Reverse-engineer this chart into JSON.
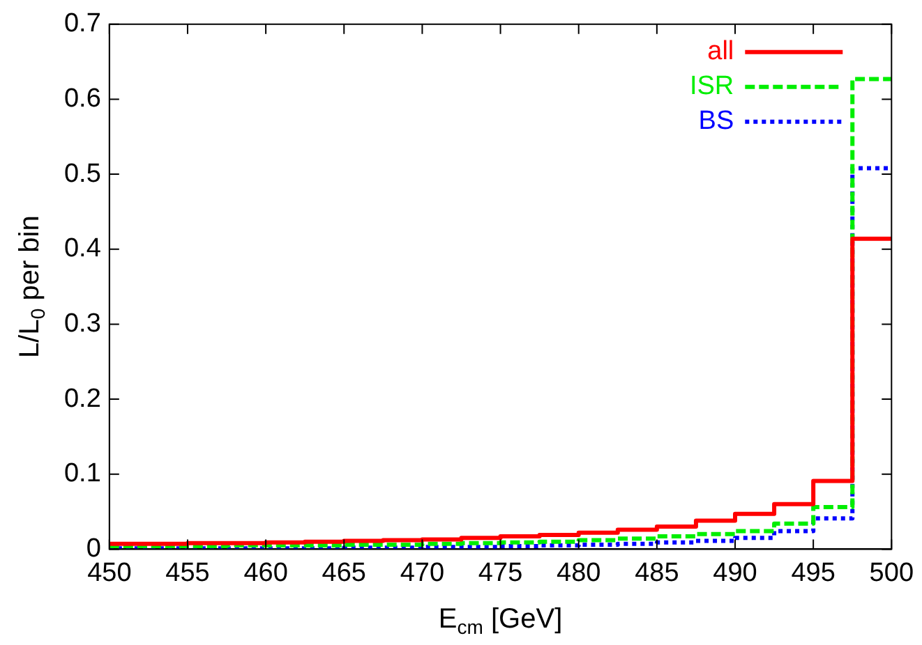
{
  "chart_data": {
    "type": "histogram",
    "xlabel": "E$_{cm}$ [GeV]",
    "ylabel": "L/L$_{0}$ per bin",
    "bins": [
      450,
      452.5,
      455,
      457.5,
      460,
      462.5,
      465,
      467.5,
      470,
      472.5,
      475,
      477.5,
      480,
      482.5,
      485,
      487.5,
      490,
      492.5,
      495,
      497.5,
      500
    ],
    "series": [
      {
        "name": "all",
        "color": "#ff0000",
        "line_style": "solid",
        "values": [
          0.007,
          0.007,
          0.008,
          0.008,
          0.009,
          0.01,
          0.011,
          0.012,
          0.013,
          0.015,
          0.017,
          0.019,
          0.022,
          0.026,
          0.03,
          0.038,
          0.047,
          0.06,
          0.091,
          0.414
        ]
      },
      {
        "name": "ISR",
        "color": "#00ee00",
        "line_style": "dashed",
        "values": [
          0.004,
          0.004,
          0.004,
          0.005,
          0.005,
          0.005,
          0.006,
          0.006,
          0.007,
          0.008,
          0.009,
          0.01,
          0.012,
          0.014,
          0.017,
          0.02,
          0.024,
          0.034,
          0.056,
          0.627
        ]
      },
      {
        "name": "BS",
        "color": "#0000ff",
        "line_style": "dotted",
        "values": [
          0.001,
          0.001,
          0.001,
          0.001,
          0.001,
          0.001,
          0.002,
          0.002,
          0.003,
          0.003,
          0.004,
          0.005,
          0.006,
          0.007,
          0.009,
          0.011,
          0.015,
          0.024,
          0.041,
          0.508
        ]
      }
    ],
    "xlim": [
      450,
      500
    ],
    "xticks": [
      450,
      455,
      460,
      465,
      470,
      475,
      480,
      485,
      490,
      495,
      500
    ],
    "ylim": [
      0,
      0.7
    ],
    "yticks": [
      0,
      0.1,
      0.2,
      0.3,
      0.4,
      0.5,
      0.6,
      0.7
    ],
    "grid": false,
    "legend": "top right"
  }
}
